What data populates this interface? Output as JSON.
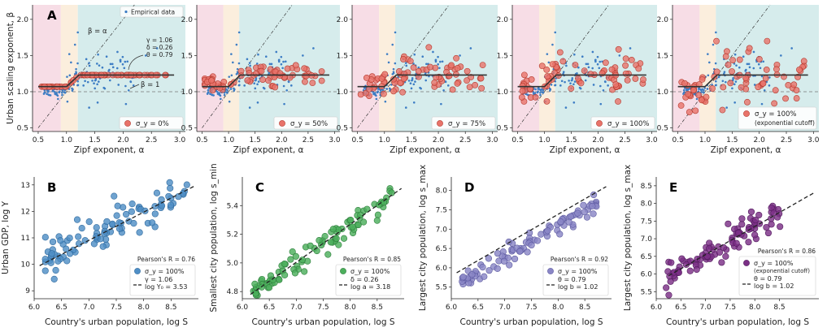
{
  "chart_data": [
    {
      "type": "scatter",
      "panel_label": "A",
      "xlabel": "Zipf exponent, α",
      "ylabel": "Urban scaling exponent, β",
      "xlim": [
        0.4,
        3.1
      ],
      "ylim": [
        0.45,
        2.2
      ],
      "xticks": [
        "0.5",
        "1.0",
        "1.5",
        "2.0",
        "2.5",
        "3.0"
      ],
      "yticks": [
        "0.5",
        "1.0",
        "1.5",
        "2.0"
      ],
      "legend_empirical": "Empirical data",
      "legend_model": "σ_y = 0%",
      "line_labels": [
        "β = α",
        "β = 1"
      ],
      "params": [
        "γ = 1.06",
        "δ = 0.26",
        "θ = 0.79"
      ],
      "sigma": 0
    },
    {
      "type": "scatter",
      "xlabel": "Zipf exponent, α",
      "xlim": [
        0.4,
        3.1
      ],
      "ylim": [
        0.45,
        2.2
      ],
      "xticks": [
        "0.5",
        "1.0",
        "1.5",
        "2.0",
        "2.5",
        "3.0"
      ],
      "yticks": [
        "0.5",
        "1.0",
        "1.5",
        "2.0"
      ],
      "legend_model": "σ_y = 50%",
      "sigma": 0.09
    },
    {
      "type": "scatter",
      "xlabel": "Zipf exponent, α",
      "xlim": [
        0.4,
        3.1
      ],
      "ylim": [
        0.45,
        2.2
      ],
      "xticks": [
        "0.5",
        "1.0",
        "1.5",
        "2.0",
        "2.5",
        "3.0"
      ],
      "yticks": [
        "0.5",
        "1.0",
        "1.5",
        "2.0"
      ],
      "legend_model": "σ_y = 75%",
      "sigma": 0.14
    },
    {
      "type": "scatter",
      "xlabel": "Zipf exponent, α",
      "xlim": [
        0.4,
        3.1
      ],
      "ylim": [
        0.45,
        2.2
      ],
      "xticks": [
        "0.5",
        "1.0",
        "1.5",
        "2.0",
        "2.5",
        "3.0"
      ],
      "yticks": [
        "0.5",
        "1.0",
        "1.5",
        "2.0"
      ],
      "legend_model": "σ_y = 100%",
      "sigma": 0.19
    },
    {
      "type": "scatter",
      "xlabel": "Zipf exponent, α",
      "xlim": [
        0.4,
        3.1
      ],
      "ylim": [
        0.45,
        2.2
      ],
      "xticks": [
        "0.5",
        "1.0",
        "1.5",
        "2.0",
        "2.5",
        "3.0"
      ],
      "yticks": [
        "0.5",
        "1.0",
        "1.5",
        "2.0"
      ],
      "legend_model": "σ_y = 100%",
      "legend_model_sub": "(exponential cutoff)",
      "sigma": 0.22
    },
    {
      "type": "scatter",
      "panel_label": "B",
      "xlabel": "Country's urban population, log S",
      "ylabel": "Urban GDP, log Y",
      "xlim": [
        6.0,
        9.0
      ],
      "ylim": [
        8.7,
        13.3
      ],
      "xticks": [
        "6.0",
        "6.5",
        "7.0",
        "7.5",
        "8.0",
        "8.5"
      ],
      "yticks": [
        "9",
        "10",
        "11",
        "12",
        "13"
      ],
      "fit": [
        [
          6.1,
          9.95
        ],
        [
          8.95,
          12.98
        ]
      ],
      "pearson": "Pearson's R = 0.76",
      "sigma_label": "σ_y = 100%",
      "fit_lines": [
        "γ = 1.06",
        "log Y₀ = 3.53"
      ],
      "color": "#4f8fc6",
      "spread": 0.45
    },
    {
      "type": "scatter",
      "panel_label": "C",
      "xlabel": "Country's urban population, log S",
      "ylabel": "Smallest city population, log s_min",
      "xlim": [
        6.0,
        9.0
      ],
      "ylim": [
        4.75,
        5.6
      ],
      "xticks": [
        "6.0",
        "6.5",
        "7.0",
        "7.5",
        "8.0",
        "8.5"
      ],
      "yticks": [
        "4.8",
        "5.0",
        "5.2",
        "5.4"
      ],
      "fit": [
        [
          6.15,
          4.78
        ],
        [
          8.95,
          5.52
        ]
      ],
      "pearson": "Pearson's R = 0.85",
      "sigma_label": "σ_y = 100%",
      "fit_lines": [
        "δ = 0.26",
        "log a = 3.18"
      ],
      "color": "#4caf5c",
      "spread": 0.06
    },
    {
      "type": "scatter",
      "panel_label": "D",
      "xlabel": "Country's urban population, log S",
      "ylabel": "Largest city population, log s_max",
      "xlim": [
        6.0,
        9.0
      ],
      "ylim": [
        5.2,
        8.35
      ],
      "xticks": [
        "6.0",
        "6.5",
        "7.0",
        "7.5",
        "8.0",
        "8.5"
      ],
      "yticks": [
        "5.5",
        "6.0",
        "6.5",
        "7.0",
        "7.5",
        "8.0"
      ],
      "fit": [
        [
          6.1,
          5.87
        ],
        [
          8.9,
          8.1
        ]
      ],
      "pearson": "Pearson's R = 0.92",
      "sigma_label": "σ_y = 100%",
      "fit_lines": [
        "θ = 0.79",
        "log b = 1.02"
      ],
      "color": "#8a86c6",
      "spread": 0.16
    },
    {
      "type": "scatter",
      "panel_label": "E",
      "xlabel": "Country's urban population, log S",
      "ylabel": "Largest city population, log s_max",
      "xlim": [
        6.0,
        9.3
      ],
      "ylim": [
        5.3,
        8.75
      ],
      "xticks": [
        "6.0",
        "6.5",
        "7.0",
        "7.5",
        "8.0",
        "8.5"
      ],
      "yticks": [
        "5.5",
        "6.0",
        "6.5",
        "7.0",
        "7.5",
        "8.0",
        "8.5"
      ],
      "fit": [
        [
          6.25,
          5.95
        ],
        [
          9.2,
          8.3
        ]
      ],
      "pearson": "Pearson's R = 0.86",
      "sigma_label": "σ_y = 100%",
      "sigma_sub": "(exponential cutoff)",
      "fit_lines": [
        "θ = 0.79",
        "log b = 1.02"
      ],
      "color": "#7b2f86",
      "spread": 0.32
    }
  ]
}
